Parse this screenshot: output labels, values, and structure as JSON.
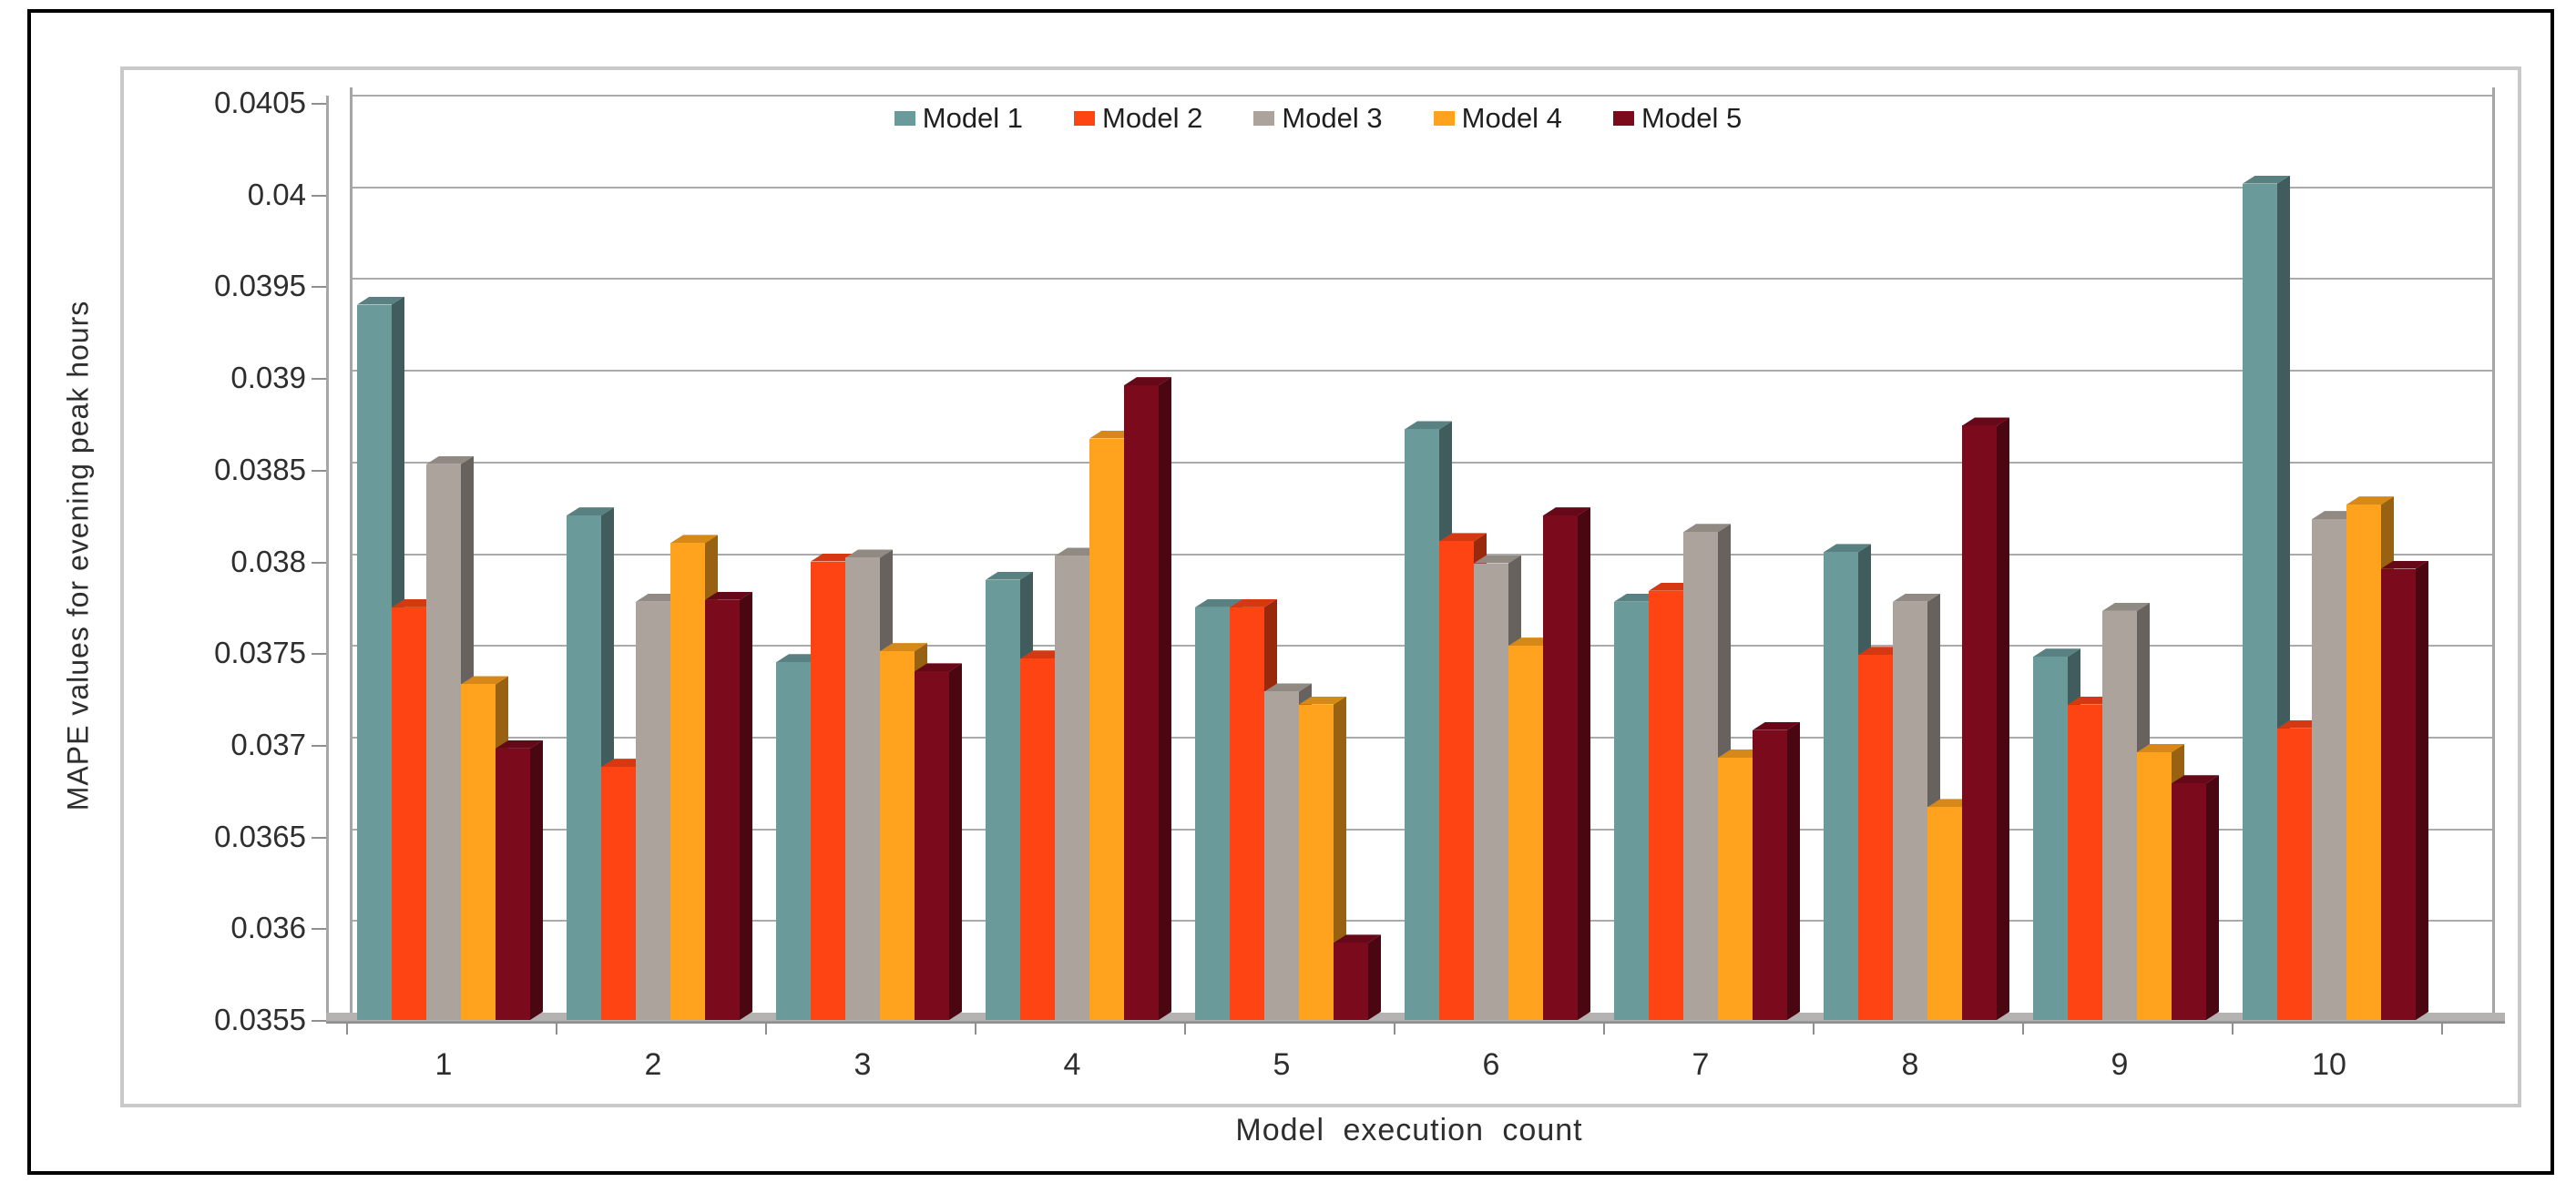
{
  "chart_data": {
    "type": "bar",
    "style": "3d-clustered-column",
    "title": "",
    "xlabel": "Model execution count",
    "ylabel": "MAPE values for evening peak hours",
    "categories": [
      "1",
      "2",
      "3",
      "4",
      "5",
      "6",
      "7",
      "8",
      "9",
      "10"
    ],
    "series": [
      {
        "name": "Model 1",
        "color": "#6B9A9A",
        "values": [
          0.0394,
          0.03825,
          0.03745,
          0.0379,
          0.03775,
          0.03872,
          0.03778,
          0.03805,
          0.03748,
          0.04006
        ]
      },
      {
        "name": "Model 2",
        "color": "#FF4414",
        "values": [
          0.03775,
          0.03688,
          0.038,
          0.03747,
          0.03775,
          0.03811,
          0.03784,
          0.03749,
          0.03722,
          0.03709
        ]
      },
      {
        "name": "Model 3",
        "color": "#ACA49C",
        "values": [
          0.03853,
          0.03778,
          0.03802,
          0.03803,
          0.03729,
          0.03799,
          0.03816,
          0.03778,
          0.03773,
          0.03823
        ]
      },
      {
        "name": "Model 4",
        "color": "#FFA21E",
        "values": [
          0.03733,
          0.0381,
          0.03751,
          0.03867,
          0.03722,
          0.03754,
          0.03693,
          0.03666,
          0.03696,
          0.03831
        ]
      },
      {
        "name": "Model 5",
        "color": "#7B0A1D",
        "values": [
          0.03698,
          0.03779,
          0.0374,
          0.03896,
          0.03592,
          0.03825,
          0.03708,
          0.03874,
          0.03679,
          0.03796
        ]
      }
    ],
    "ylim": [
      0.0355,
      0.0405
    ],
    "ytick_step": 0.0005,
    "yticks": [
      "0.0405",
      "0.04",
      "0.0395",
      "0.039",
      "0.0385",
      "0.038",
      "0.0375",
      "0.037",
      "0.0365",
      "0.036",
      "0.0355"
    ],
    "grid": true,
    "legend_position": "top-center"
  },
  "colors": {
    "gridline": "#ABABAB",
    "axis": "#A6A6A6",
    "floor": "#B5B2B2",
    "chart_border": "#C9C9C9",
    "figure_border": "#000000",
    "text": "#2E2E2E"
  }
}
